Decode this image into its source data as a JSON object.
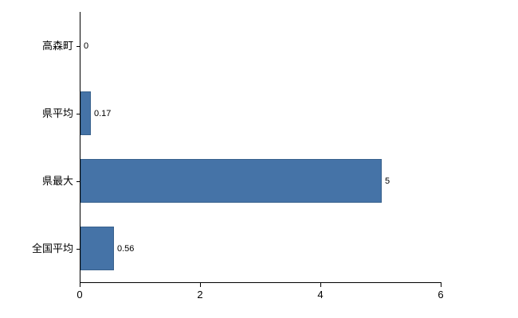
{
  "chart_data": {
    "type": "bar",
    "orientation": "horizontal",
    "title": "",
    "xlabel": "",
    "ylabel": "",
    "categories": [
      "高森町",
      "県平均",
      "県最大",
      "全国平均"
    ],
    "values": [
      0,
      0.17,
      5,
      0.56
    ],
    "value_labels": [
      "0",
      "0.17",
      "5",
      "0.56"
    ],
    "xlim": [
      0,
      6
    ],
    "x_ticks": [
      0,
      2,
      4,
      6
    ],
    "x_tick_labels": [
      "0",
      "2",
      "4",
      "6"
    ],
    "grid": false,
    "legend": false,
    "bar_color": "#4573a7",
    "bar_border_color": "#38618c",
    "axis_color": "#000000",
    "background_color": "#ffffff"
  }
}
